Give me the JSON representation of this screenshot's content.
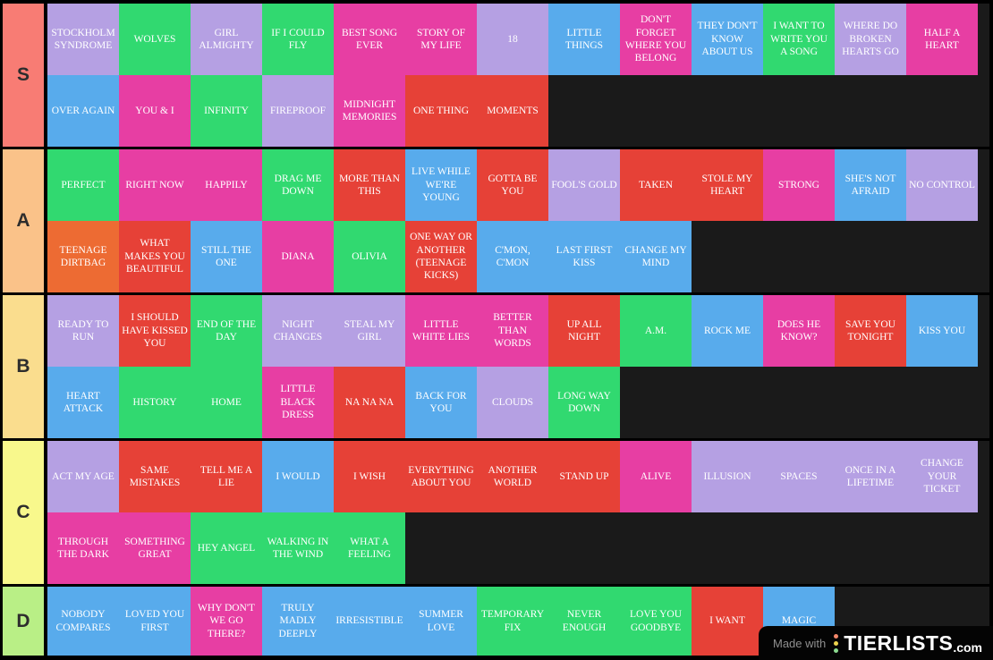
{
  "palette": {
    "purple": "#b5a0e3",
    "green": "#31d970",
    "magenta": "#e73ea3",
    "red": "#e64137",
    "blue": "#58abec",
    "orange": "#ed6b33"
  },
  "empty_row_color": "#1a1a1a",
  "background_color": "#000000",
  "watermark": {
    "made_with": "Made with",
    "brand": "TIERLISTS",
    "suffix": ".com",
    "icon": "traffic-dots-icon",
    "dot_colors": [
      "#f4876a",
      "#ecd24d",
      "#8cdb90"
    ]
  },
  "tiers": [
    {
      "label": "S",
      "color": "#f87c74",
      "items": [
        {
          "title": "STOCKHOLM SYNDROME",
          "color": "purple"
        },
        {
          "title": "WOLVES",
          "color": "green"
        },
        {
          "title": "GIRL ALMIGHTY",
          "color": "purple"
        },
        {
          "title": "IF I COULD FLY",
          "color": "green"
        },
        {
          "title": "BEST SONG EVER",
          "color": "magenta"
        },
        {
          "title": "STORY OF MY LIFE",
          "color": "magenta"
        },
        {
          "title": "18",
          "color": "purple"
        },
        {
          "title": "LITTLE THINGS",
          "color": "blue"
        },
        {
          "title": "DON'T FORGET WHERE YOU BELONG",
          "color": "magenta"
        },
        {
          "title": "THEY DON'T KNOW ABOUT US",
          "color": "blue"
        },
        {
          "title": "I WANT TO WRITE YOU A SONG",
          "color": "green"
        },
        {
          "title": "WHERE DO BROKEN HEARTS GO",
          "color": "purple"
        },
        {
          "title": "HALF A HEART",
          "color": "magenta"
        },
        {
          "title": "OVER AGAIN",
          "color": "blue"
        },
        {
          "title": "YOU & I",
          "color": "magenta"
        },
        {
          "title": "INFINITY",
          "color": "green"
        },
        {
          "title": "FIREPROOF",
          "color": "purple"
        },
        {
          "title": "MIDNIGHT MEMORIES",
          "color": "magenta"
        },
        {
          "title": "ONE THING",
          "color": "red"
        },
        {
          "title": "MOMENTS",
          "color": "red"
        }
      ]
    },
    {
      "label": "A",
      "color": "#fac289",
      "items": [
        {
          "title": "PERFECT",
          "color": "green"
        },
        {
          "title": "RIGHT NOW",
          "color": "magenta"
        },
        {
          "title": "HAPPILY",
          "color": "magenta"
        },
        {
          "title": "DRAG ME DOWN",
          "color": "green"
        },
        {
          "title": "MORE THAN THIS",
          "color": "red"
        },
        {
          "title": "LIVE WHILE WE'RE YOUNG",
          "color": "blue"
        },
        {
          "title": "GOTTA BE YOU",
          "color": "red"
        },
        {
          "title": "FOOL'S GOLD",
          "color": "purple"
        },
        {
          "title": "TAKEN",
          "color": "red"
        },
        {
          "title": "STOLE MY HEART",
          "color": "red"
        },
        {
          "title": "STRONG",
          "color": "magenta"
        },
        {
          "title": "SHE'S NOT AFRAID",
          "color": "blue"
        },
        {
          "title": "NO CONTROL",
          "color": "purple"
        },
        {
          "title": "TEENAGE DIRTBAG",
          "color": "orange"
        },
        {
          "title": "WHAT MAKES YOU BEAUTIFUL",
          "color": "red"
        },
        {
          "title": "STILL THE ONE",
          "color": "blue"
        },
        {
          "title": "DIANA",
          "color": "magenta"
        },
        {
          "title": "OLIVIA",
          "color": "green"
        },
        {
          "title": "ONE WAY OR ANOTHER (TEENAGE KICKS)",
          "color": "red"
        },
        {
          "title": "C'MON, C'MON",
          "color": "blue"
        },
        {
          "title": "LAST FIRST KISS",
          "color": "blue"
        },
        {
          "title": "CHANGE MY MIND",
          "color": "blue"
        }
      ]
    },
    {
      "label": "B",
      "color": "#fadd8e",
      "items": [
        {
          "title": "READY TO RUN",
          "color": "purple"
        },
        {
          "title": "I SHOULD HAVE KISSED YOU",
          "color": "red"
        },
        {
          "title": "END OF THE DAY",
          "color": "green"
        },
        {
          "title": "NIGHT CHANGES",
          "color": "purple"
        },
        {
          "title": "STEAL MY GIRL",
          "color": "purple"
        },
        {
          "title": "LITTLE WHITE LIES",
          "color": "magenta"
        },
        {
          "title": "BETTER THAN WORDS",
          "color": "magenta"
        },
        {
          "title": "UP ALL NIGHT",
          "color": "red"
        },
        {
          "title": "A.M.",
          "color": "green"
        },
        {
          "title": "ROCK ME",
          "color": "blue"
        },
        {
          "title": "DOES HE KNOW?",
          "color": "magenta"
        },
        {
          "title": "SAVE YOU TONIGHT",
          "color": "red"
        },
        {
          "title": "KISS YOU",
          "color": "blue"
        },
        {
          "title": "HEART ATTACK",
          "color": "blue"
        },
        {
          "title": "HISTORY",
          "color": "green"
        },
        {
          "title": "HOME",
          "color": "green"
        },
        {
          "title": "LITTLE BLACK DRESS",
          "color": "magenta"
        },
        {
          "title": "NA NA NA",
          "color": "red"
        },
        {
          "title": "BACK FOR YOU",
          "color": "blue"
        },
        {
          "title": "CLOUDS",
          "color": "purple"
        },
        {
          "title": "LONG WAY DOWN",
          "color": "green"
        }
      ]
    },
    {
      "label": "C",
      "color": "#f8f88c",
      "items": [
        {
          "title": "ACT MY AGE",
          "color": "purple"
        },
        {
          "title": "SAME MISTAKES",
          "color": "red"
        },
        {
          "title": "TELL ME A LIE",
          "color": "red"
        },
        {
          "title": "I WOULD",
          "color": "blue"
        },
        {
          "title": "I WISH",
          "color": "red"
        },
        {
          "title": "EVERYTHING ABOUT YOU",
          "color": "red"
        },
        {
          "title": "ANOTHER WORLD",
          "color": "red"
        },
        {
          "title": "STAND UP",
          "color": "red"
        },
        {
          "title": "ALIVE",
          "color": "magenta"
        },
        {
          "title": "ILLUSION",
          "color": "purple"
        },
        {
          "title": "SPACES",
          "color": "purple"
        },
        {
          "title": "ONCE IN A LIFETIME",
          "color": "purple"
        },
        {
          "title": "CHANGE YOUR TICKET",
          "color": "purple"
        },
        {
          "title": "THROUGH THE DARK",
          "color": "magenta"
        },
        {
          "title": "SOMETHING GREAT",
          "color": "magenta"
        },
        {
          "title": "HEY ANGEL",
          "color": "green"
        },
        {
          "title": "WALKING IN THE WIND",
          "color": "green"
        },
        {
          "title": "WHAT A FEELING",
          "color": "green"
        }
      ]
    },
    {
      "label": "D",
      "color": "#b9ef86",
      "items": [
        {
          "title": "NOBODY COMPARES",
          "color": "blue"
        },
        {
          "title": "LOVED YOU FIRST",
          "color": "blue"
        },
        {
          "title": "WHY DON'T WE GO THERE?",
          "color": "magenta"
        },
        {
          "title": "TRULY MADLY DEEPLY",
          "color": "blue"
        },
        {
          "title": "IRRESISTIBLE",
          "color": "blue"
        },
        {
          "title": "SUMMER LOVE",
          "color": "blue"
        },
        {
          "title": "TEMPORARY FIX",
          "color": "green"
        },
        {
          "title": "NEVER ENOUGH",
          "color": "green"
        },
        {
          "title": "LOVE YOU GOODBYE",
          "color": "green"
        },
        {
          "title": "I WANT",
          "color": "red"
        },
        {
          "title": "MAGIC",
          "color": "blue"
        }
      ]
    }
  ]
}
